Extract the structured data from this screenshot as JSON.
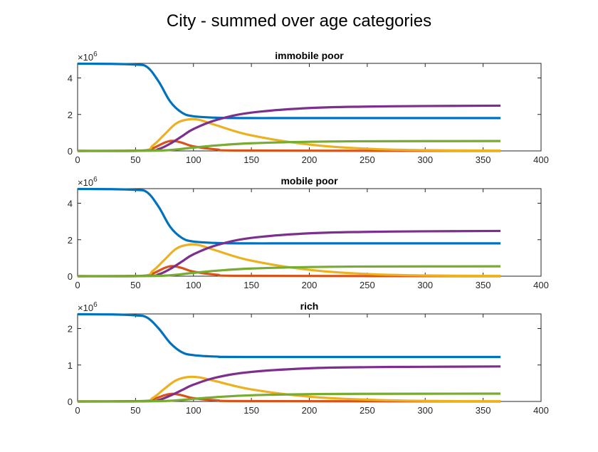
{
  "figure": {
    "title": "City - summed over age categories"
  },
  "colors": {
    "s1": "#0072BD",
    "s2": "#D95319",
    "s3": "#EDB120",
    "s4": "#7E2F8E",
    "s5": "#77AC30"
  },
  "chart_data": [
    {
      "type": "line",
      "title": "immobile poor",
      "exponent_label": "×10",
      "exponent_power": "6",
      "xlim": [
        0,
        400
      ],
      "ylim": [
        0,
        4.8
      ],
      "xticks": [
        0,
        50,
        100,
        150,
        200,
        250,
        300,
        350,
        400
      ],
      "yticks": [
        0,
        2,
        4
      ],
      "grid": false,
      "series": [
        {
          "color_key": "s1",
          "points": [
            [
              0,
              4.78
            ],
            [
              30,
              4.77
            ],
            [
              50,
              4.73
            ],
            [
              60,
              4.6
            ],
            [
              70,
              3.8
            ],
            [
              80,
              2.7
            ],
            [
              90,
              2.1
            ],
            [
              100,
              1.9
            ],
            [
              120,
              1.82
            ],
            [
              150,
              1.8
            ],
            [
              200,
              1.8
            ],
            [
              365,
              1.8
            ]
          ]
        },
        {
          "color_key": "s2",
          "points": [
            [
              0,
              0
            ],
            [
              55,
              0.01
            ],
            [
              65,
              0.15
            ],
            [
              75,
              0.45
            ],
            [
              82,
              0.55
            ],
            [
              90,
              0.45
            ],
            [
              100,
              0.25
            ],
            [
              120,
              0.08
            ],
            [
              150,
              0.02
            ],
            [
              365,
              0
            ]
          ]
        },
        {
          "color_key": "s3",
          "points": [
            [
              0,
              0
            ],
            [
              55,
              0.02
            ],
            [
              65,
              0.3
            ],
            [
              75,
              0.9
            ],
            [
              85,
              1.5
            ],
            [
              95,
              1.72
            ],
            [
              105,
              1.7
            ],
            [
              120,
              1.4
            ],
            [
              150,
              0.85
            ],
            [
              200,
              0.35
            ],
            [
              250,
              0.12
            ],
            [
              300,
              0.04
            ],
            [
              365,
              0.01
            ]
          ]
        },
        {
          "color_key": "s4",
          "points": [
            [
              0,
              0
            ],
            [
              60,
              0.02
            ],
            [
              70,
              0.1
            ],
            [
              80,
              0.4
            ],
            [
              90,
              0.8
            ],
            [
              100,
              1.2
            ],
            [
              120,
              1.7
            ],
            [
              150,
              2.1
            ],
            [
              200,
              2.35
            ],
            [
              250,
              2.43
            ],
            [
              300,
              2.46
            ],
            [
              365,
              2.48
            ]
          ]
        },
        {
          "color_key": "s5",
          "points": [
            [
              0,
              0
            ],
            [
              60,
              0.01
            ],
            [
              80,
              0.05
            ],
            [
              100,
              0.18
            ],
            [
              120,
              0.3
            ],
            [
              150,
              0.42
            ],
            [
              200,
              0.5
            ],
            [
              250,
              0.53
            ],
            [
              365,
              0.54
            ]
          ]
        }
      ]
    },
    {
      "type": "line",
      "title": "mobile poor",
      "exponent_label": "×10",
      "exponent_power": "6",
      "xlim": [
        0,
        400
      ],
      "ylim": [
        0,
        4.8
      ],
      "xticks": [
        0,
        50,
        100,
        150,
        200,
        250,
        300,
        350,
        400
      ],
      "yticks": [
        0,
        2,
        4
      ],
      "grid": false,
      "series": [
        {
          "color_key": "s1",
          "points": [
            [
              0,
              4.78
            ],
            [
              30,
              4.77
            ],
            [
              50,
              4.73
            ],
            [
              60,
              4.6
            ],
            [
              70,
              3.8
            ],
            [
              80,
              2.7
            ],
            [
              90,
              2.1
            ],
            [
              100,
              1.9
            ],
            [
              120,
              1.82
            ],
            [
              150,
              1.8
            ],
            [
              200,
              1.8
            ],
            [
              365,
              1.8
            ]
          ]
        },
        {
          "color_key": "s2",
          "points": [
            [
              0,
              0
            ],
            [
              55,
              0.01
            ],
            [
              65,
              0.15
            ],
            [
              75,
              0.45
            ],
            [
              82,
              0.55
            ],
            [
              90,
              0.45
            ],
            [
              100,
              0.25
            ],
            [
              120,
              0.08
            ],
            [
              150,
              0.02
            ],
            [
              365,
              0
            ]
          ]
        },
        {
          "color_key": "s3",
          "points": [
            [
              0,
              0
            ],
            [
              55,
              0.02
            ],
            [
              65,
              0.3
            ],
            [
              75,
              0.9
            ],
            [
              85,
              1.5
            ],
            [
              95,
              1.72
            ],
            [
              105,
              1.7
            ],
            [
              120,
              1.4
            ],
            [
              150,
              0.85
            ],
            [
              200,
              0.35
            ],
            [
              250,
              0.12
            ],
            [
              300,
              0.04
            ],
            [
              365,
              0.01
            ]
          ]
        },
        {
          "color_key": "s4",
          "points": [
            [
              0,
              0
            ],
            [
              60,
              0.02
            ],
            [
              70,
              0.1
            ],
            [
              80,
              0.4
            ],
            [
              90,
              0.8
            ],
            [
              100,
              1.2
            ],
            [
              120,
              1.7
            ],
            [
              150,
              2.1
            ],
            [
              200,
              2.35
            ],
            [
              250,
              2.43
            ],
            [
              300,
              2.46
            ],
            [
              365,
              2.48
            ]
          ]
        },
        {
          "color_key": "s5",
          "points": [
            [
              0,
              0
            ],
            [
              60,
              0.01
            ],
            [
              80,
              0.05
            ],
            [
              100,
              0.18
            ],
            [
              120,
              0.3
            ],
            [
              150,
              0.42
            ],
            [
              200,
              0.5
            ],
            [
              250,
              0.53
            ],
            [
              365,
              0.54
            ]
          ]
        }
      ]
    },
    {
      "type": "line",
      "title": "rich",
      "exponent_label": "×10",
      "exponent_power": "6",
      "xlim": [
        0,
        400
      ],
      "ylim": [
        0,
        2.4
      ],
      "xticks": [
        0,
        50,
        100,
        150,
        200,
        250,
        300,
        350,
        400
      ],
      "yticks": [
        0,
        1,
        2
      ],
      "grid": false,
      "series": [
        {
          "color_key": "s1",
          "points": [
            [
              0,
              2.39
            ],
            [
              30,
              2.385
            ],
            [
              50,
              2.36
            ],
            [
              60,
              2.3
            ],
            [
              70,
              2.0
            ],
            [
              80,
              1.6
            ],
            [
              90,
              1.35
            ],
            [
              100,
              1.27
            ],
            [
              120,
              1.23
            ],
            [
              150,
              1.22
            ],
            [
              365,
              1.22
            ]
          ]
        },
        {
          "color_key": "s2",
          "points": [
            [
              0,
              0
            ],
            [
              55,
              0.005
            ],
            [
              65,
              0.06
            ],
            [
              75,
              0.17
            ],
            [
              82,
              0.21
            ],
            [
              90,
              0.17
            ],
            [
              100,
              0.09
            ],
            [
              120,
              0.03
            ],
            [
              150,
              0.01
            ],
            [
              365,
              0
            ]
          ]
        },
        {
          "color_key": "s3",
          "points": [
            [
              0,
              0
            ],
            [
              55,
              0.01
            ],
            [
              65,
              0.1
            ],
            [
              75,
              0.35
            ],
            [
              85,
              0.58
            ],
            [
              95,
              0.67
            ],
            [
              105,
              0.66
            ],
            [
              120,
              0.55
            ],
            [
              150,
              0.33
            ],
            [
              200,
              0.13
            ],
            [
              250,
              0.05
            ],
            [
              300,
              0.015
            ],
            [
              365,
              0.005
            ]
          ]
        },
        {
          "color_key": "s4",
          "points": [
            [
              0,
              0
            ],
            [
              60,
              0.01
            ],
            [
              70,
              0.04
            ],
            [
              80,
              0.16
            ],
            [
              90,
              0.31
            ],
            [
              100,
              0.46
            ],
            [
              120,
              0.66
            ],
            [
              150,
              0.81
            ],
            [
              200,
              0.91
            ],
            [
              250,
              0.94
            ],
            [
              300,
              0.95
            ],
            [
              365,
              0.96
            ]
          ]
        },
        {
          "color_key": "s5",
          "points": [
            [
              0,
              0
            ],
            [
              60,
              0.005
            ],
            [
              80,
              0.02
            ],
            [
              100,
              0.07
            ],
            [
              120,
              0.12
            ],
            [
              150,
              0.17
            ],
            [
              200,
              0.2
            ],
            [
              250,
              0.21
            ],
            [
              365,
              0.215
            ]
          ]
        }
      ]
    }
  ]
}
